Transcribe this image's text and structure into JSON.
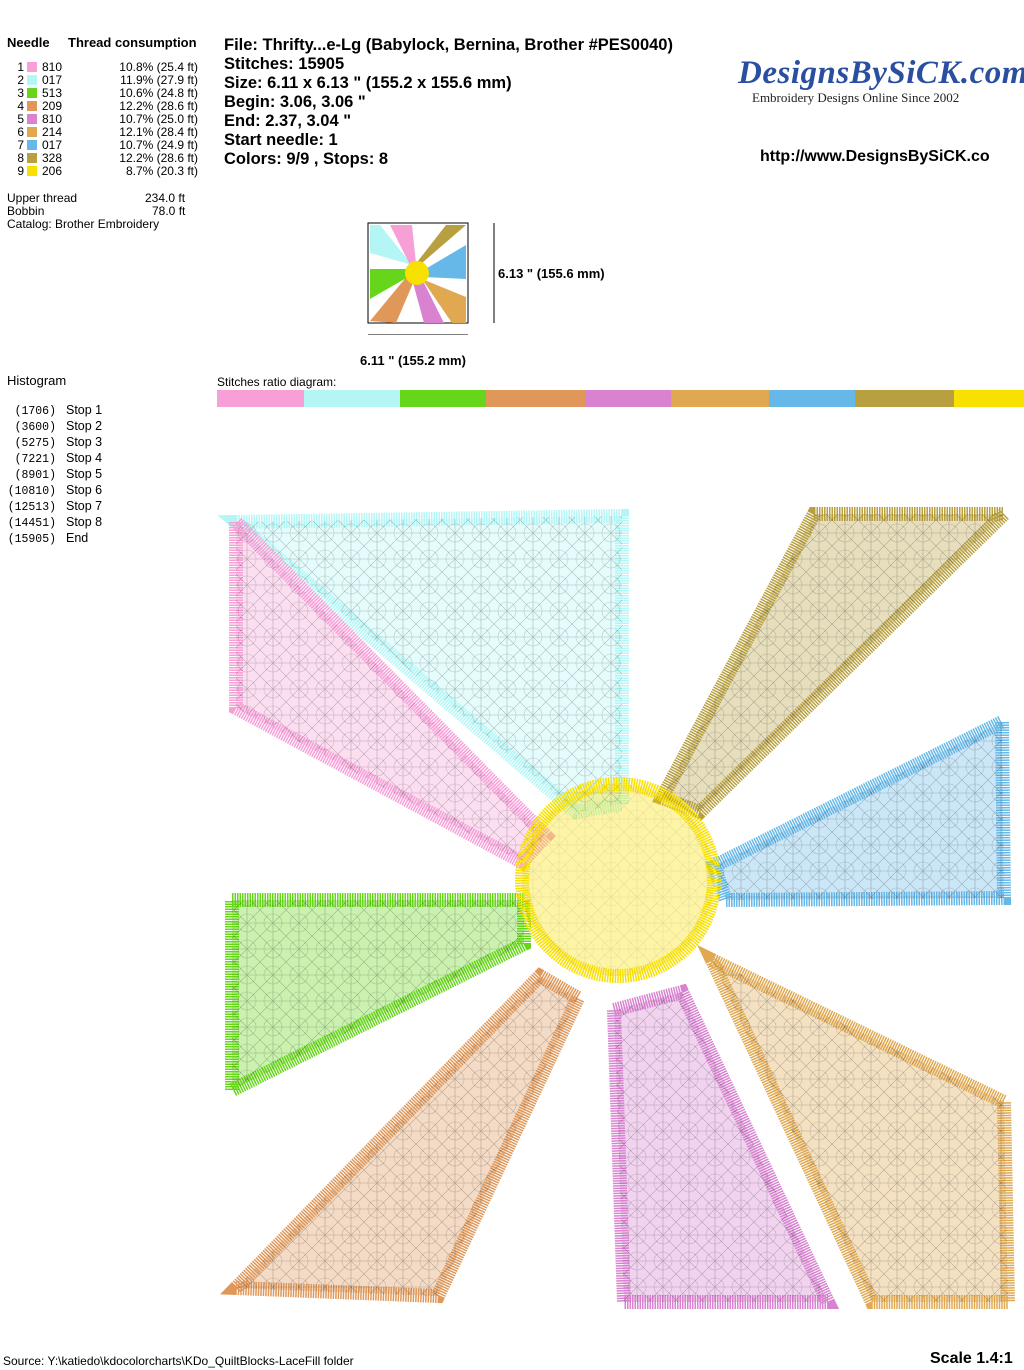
{
  "needle_table": {
    "header_needle": "Needle",
    "header_consumption": "Thread consumption",
    "rows": [
      {
        "n": "1",
        "code": "810",
        "pct": "10.8% (25.4 ft)",
        "color": "#f7a0d8",
        "ratio": 10.8
      },
      {
        "n": "2",
        "code": "017",
        "pct": "11.9% (27.9 ft)",
        "color": "#b4f6f6",
        "ratio": 11.9
      },
      {
        "n": "3",
        "code": "513",
        "pct": "10.6% (24.8 ft)",
        "color": "#66d61a",
        "ratio": 10.6
      },
      {
        "n": "4",
        "code": "209",
        "pct": "12.2% (28.6 ft)",
        "color": "#e0985a",
        "ratio": 12.2
      },
      {
        "n": "5",
        "code": "810",
        "pct": "10.7% (25.0 ft)",
        "color": "#d882d0",
        "ratio": 10.7
      },
      {
        "n": "6",
        "code": "214",
        "pct": "12.1% (28.4 ft)",
        "color": "#e0a850",
        "ratio": 12.1
      },
      {
        "n": "7",
        "code": "017",
        "pct": "10.7% (24.9 ft)",
        "color": "#66b8e8",
        "ratio": 10.7
      },
      {
        "n": "8",
        "code": "328",
        "pct": "12.2% (28.6 ft)",
        "color": "#b8a040",
        "ratio": 12.2
      },
      {
        "n": "9",
        "code": "206",
        "pct": "8.7% (20.3 ft)",
        "color": "#f8e000",
        "ratio": 8.7
      }
    ]
  },
  "totals": {
    "upper_label": "Upper thread",
    "upper_value": "234.0 ft",
    "bobbin_label": "Bobbin",
    "bobbin_value": "78.0 ft",
    "catalog": "Catalog: Brother Embroidery"
  },
  "info": {
    "file": "File: Thrifty...e-Lg  (Babylock, Bernina, Brother #PES0040)",
    "stitches": "Stitches: 15905",
    "size": "Size: 6.11 x 6.13 \" (155.2 x 155.6 mm)",
    "begin": "Begin: 3.06, 3.06 \"",
    "end": "End: 2.37, 3.04 \"",
    "start_needle": "Start needle: 1",
    "colors": "Colors: 9/9 , Stops: 8"
  },
  "logo": {
    "text": "DesignsBySiCK.com",
    "tagline": "Embroidery Designs Online Since 2002",
    "url": "http://www.DesignsBySiCK.co"
  },
  "thumbnail": {
    "height_label": "6.13 \" (155.6 mm)",
    "width_label": "6.11 \" (155.2 mm)"
  },
  "histogram": {
    "title": "Histogram",
    "rows": [
      {
        "count": "(1706)",
        "label": "Stop 1"
      },
      {
        "count": "(3600)",
        "label": "Stop 2"
      },
      {
        "count": "(5275)",
        "label": "Stop 3"
      },
      {
        "count": "(7221)",
        "label": "Stop 4"
      },
      {
        "count": "(8901)",
        "label": "Stop 5"
      },
      {
        "count": "(10810)",
        "label": "Stop 6"
      },
      {
        "count": "(12513)",
        "label": "Stop 7"
      },
      {
        "count": "(14451)",
        "label": "Stop 8"
      },
      {
        "count": "(15905)",
        "label": "End"
      }
    ]
  },
  "ratio_title": "Stitches ratio diagram:",
  "footer": {
    "source": "Source: Y:\\katiedo\\kdocolorcharts\\KDo_QuiltBlocks-LaceFill folder",
    "scale": "Scale 1.4:1"
  }
}
